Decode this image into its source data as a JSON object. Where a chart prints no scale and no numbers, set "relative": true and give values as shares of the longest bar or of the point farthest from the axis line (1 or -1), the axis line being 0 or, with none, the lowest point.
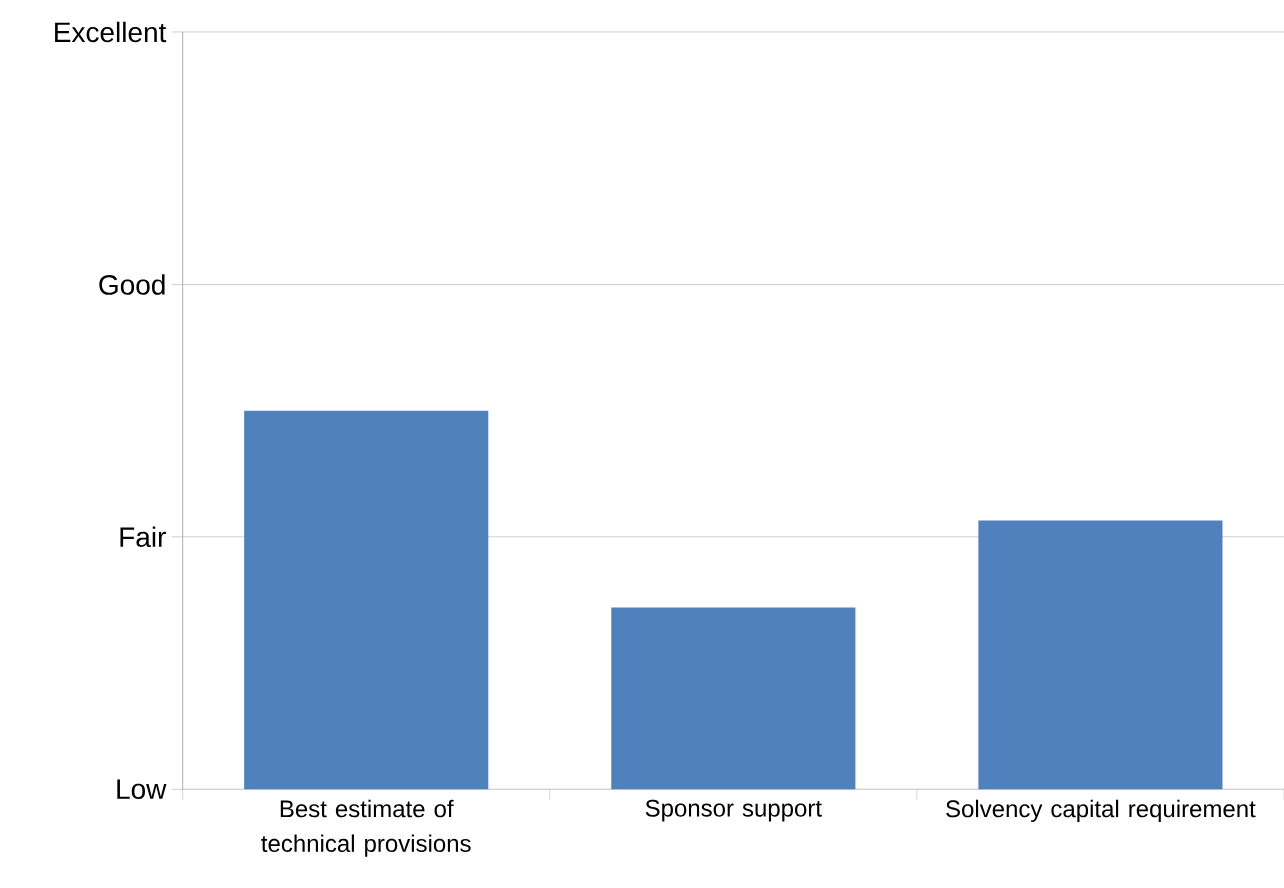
{
  "chart_data": {
    "type": "bar",
    "categories": [
      "Best estimate of technical provisions",
      "Sponsor support",
      "Solvency capital requirement"
    ],
    "values": [
      1,
      0.48,
      0.71
    ],
    "color": "#4f81bd",
    "relative": true,
    "ref_lines": [
      {
        "axis": "y",
        "value": 0,
        "label": "Low",
        "color": "#a6a6a6"
      },
      {
        "axis": "y",
        "value": 0.667,
        "label": "Fair",
        "color": "#a6a6a6"
      },
      {
        "axis": "y",
        "value": 1.333,
        "label": "Good",
        "color": "#a6a6a6"
      },
      {
        "axis": "y",
        "value": 2,
        "label": "Excellent",
        "color": "#a6a6a6"
      }
    ]
  }
}
